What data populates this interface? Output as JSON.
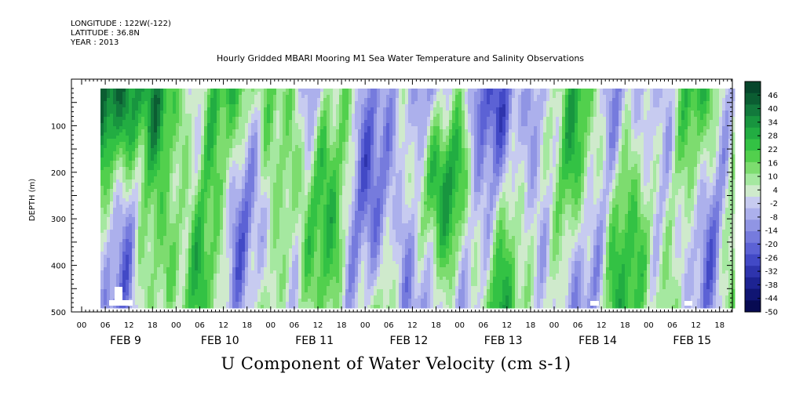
{
  "header": {
    "longitude": "LONGITUDE : 122W(-122)",
    "latitude": "LATITUDE : 36.8N",
    "year": "YEAR : 2013"
  },
  "chart_data": {
    "type": "heatmap",
    "title": "Hourly Gridded MBARI Mooring M1 Sea Water Temperature and Salinity Observations",
    "subtitle": "U Component of Water Velocity (cm s-1)",
    "ylabel": "DEPTH (m)",
    "ylim": [
      500,
      0
    ],
    "y_ticks": [
      100,
      200,
      300,
      400,
      500
    ],
    "x_hour_ticks": [
      "00",
      "06",
      "12",
      "18",
      "00",
      "06",
      "12",
      "18",
      "00",
      "06",
      "12",
      "18",
      "00",
      "06",
      "12",
      "18",
      "00",
      "06",
      "12",
      "18",
      "00",
      "06",
      "12",
      "18",
      "00",
      "06",
      "12",
      "18"
    ],
    "x_date_labels": [
      "FEB  9",
      "FEB 10",
      "FEB 11",
      "FEB 12",
      "FEB 13",
      "FEB 14",
      "FEB 15"
    ],
    "colorbar": {
      "ticks": [
        46,
        40,
        34,
        28,
        22,
        16,
        10,
        4,
        -2,
        -8,
        -14,
        -20,
        -26,
        -32,
        -38,
        -44,
        -50
      ],
      "range": [
        -50,
        52
      ],
      "colors_high_to_low": [
        "#06462b",
        "#0b5d32",
        "#12793c",
        "#18953f",
        "#22ad42",
        "#33c244",
        "#52d04d",
        "#7ddc6f",
        "#a5e8a0",
        "#cfeacc",
        "#c7cbf0",
        "#acb0ec",
        "#9095e4",
        "#767bdd",
        "#5c62d5",
        "#4249c6",
        "#2e34ad",
        "#1d2392",
        "#101573",
        "#070a52"
      ]
    },
    "depth_profile": [
      {
        "day": "FEB  9",
        "near_surface": "positive (up to ~40)",
        "deep": "mixed"
      },
      {
        "day": "FEB 10",
        "near_surface": "positive",
        "deep": "mixed"
      },
      {
        "day": "FEB 11",
        "near_surface": "mixed",
        "deep": "mixed"
      },
      {
        "day": "FEB 12",
        "near_surface": "negative",
        "deep": "mixed"
      },
      {
        "day": "FEB 13",
        "near_surface": "negative",
        "deep": "mixed"
      },
      {
        "day": "FEB 14",
        "near_surface": "mixed",
        "deep": "mixed"
      },
      {
        "day": "FEB 15",
        "near_surface": "mixed",
        "deep": "mixed"
      }
    ]
  }
}
